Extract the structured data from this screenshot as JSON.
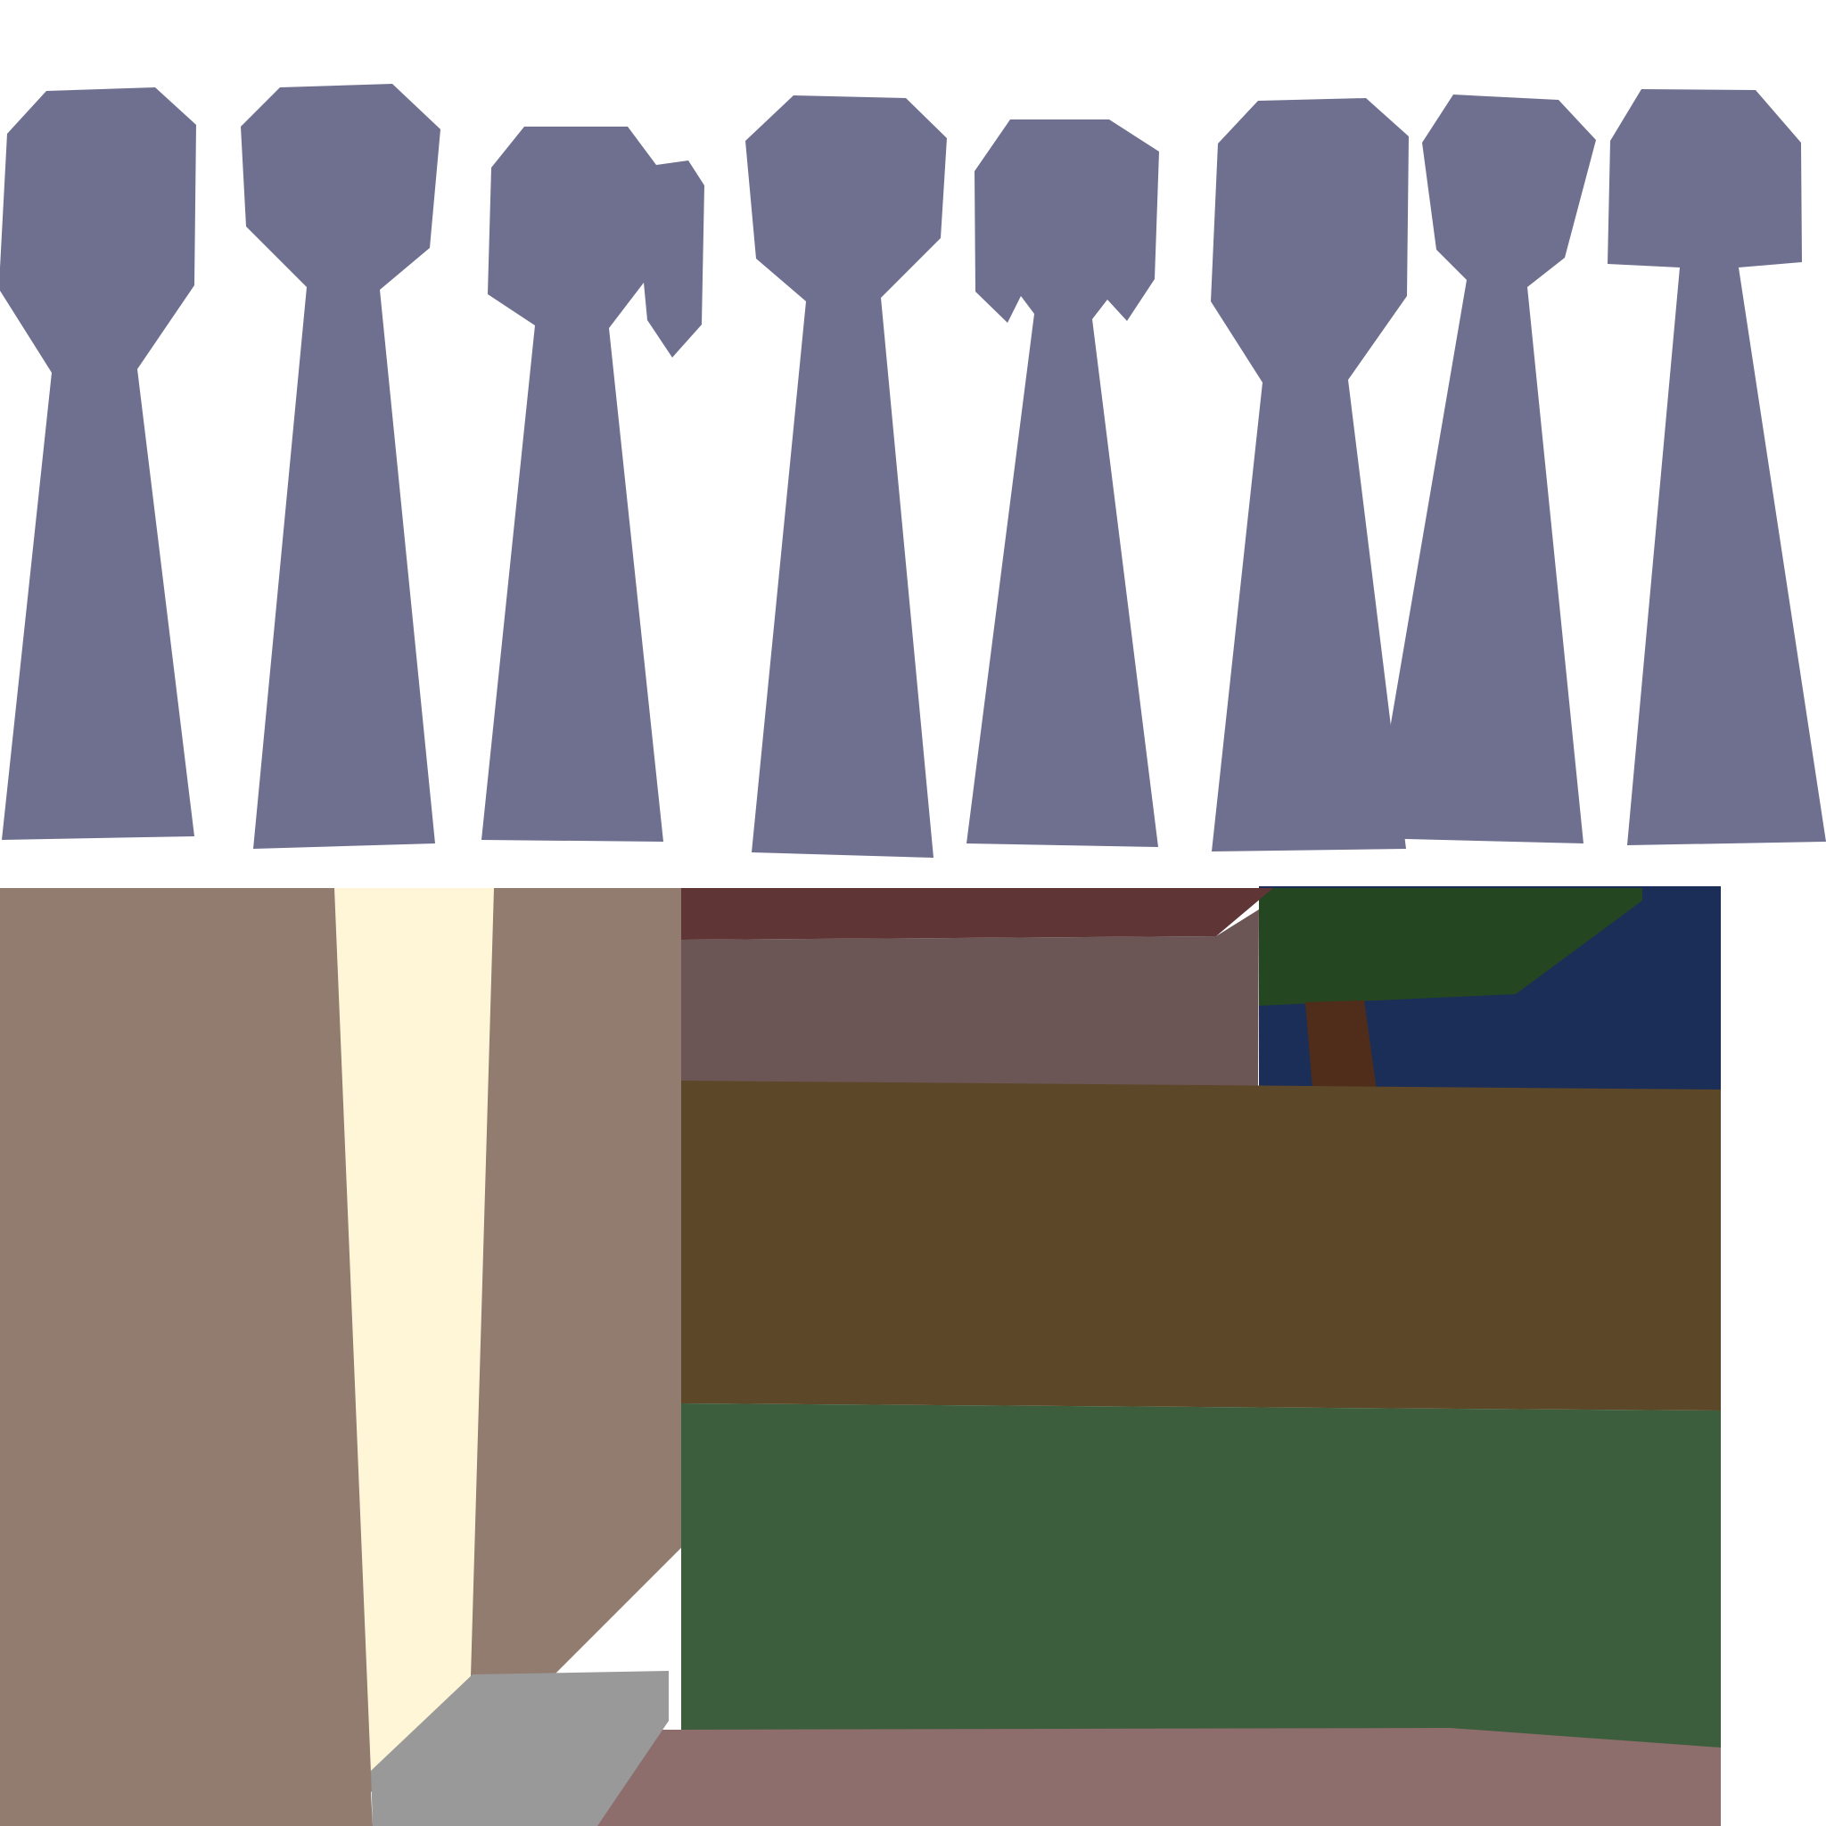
{
  "scene": {
    "figures_count": 8,
    "colors": {
      "background": "#ffffff",
      "figure": "#6f708f",
      "wall_left": "#917c6f",
      "light_beam": "#fff6d7",
      "roof_dark": "#5f3536",
      "roof_face": "#6c5555",
      "treetop": "#244722",
      "sky": "#1b2e57",
      "trunk": "#4f2d1a",
      "ground_band": "#5d4729",
      "grass": "#3d5e3d",
      "step": "#999999",
      "floor": "#8e6e6c"
    }
  }
}
